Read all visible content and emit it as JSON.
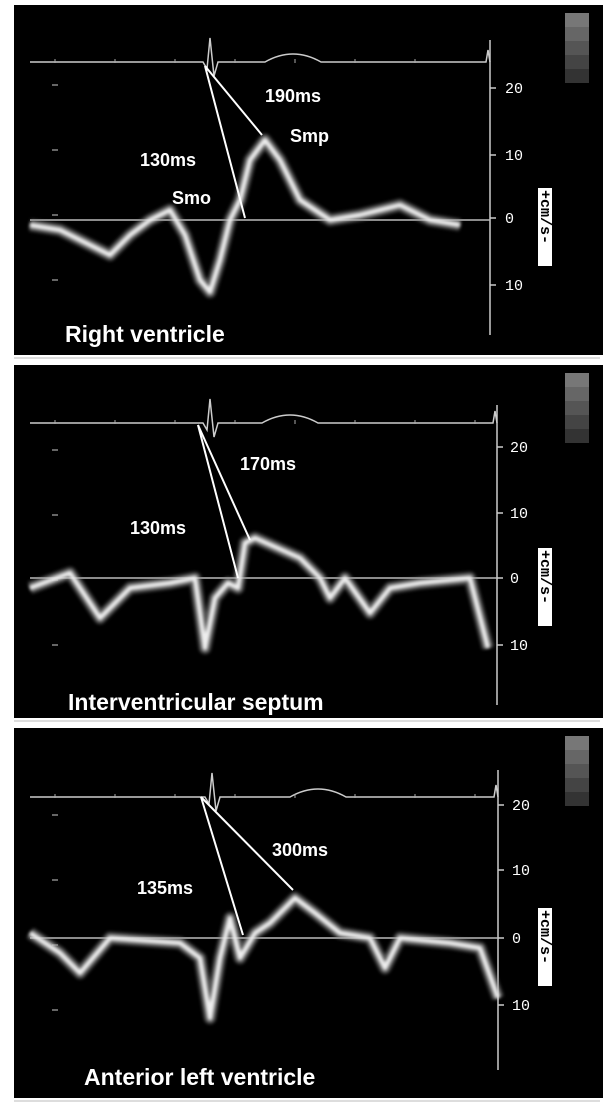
{
  "panels": [
    {
      "title": "Right ventricle",
      "annotations": [
        "190ms",
        "Smp",
        "130ms",
        "Smo"
      ],
      "scale": [
        "20",
        "10",
        "0",
        "10"
      ],
      "unit": "+cm/s-"
    },
    {
      "title": "Interventricular septum",
      "annotations": [
        "170ms",
        "130ms"
      ],
      "scale": [
        "20",
        "10",
        "0",
        "10"
      ],
      "unit": "+cm/s-"
    },
    {
      "title": "Anterior left ventricle",
      "annotations": [
        "300ms",
        "135ms"
      ],
      "scale": [
        "20",
        "10",
        "0",
        "10"
      ],
      "unit": "+cm/s-"
    }
  ]
}
